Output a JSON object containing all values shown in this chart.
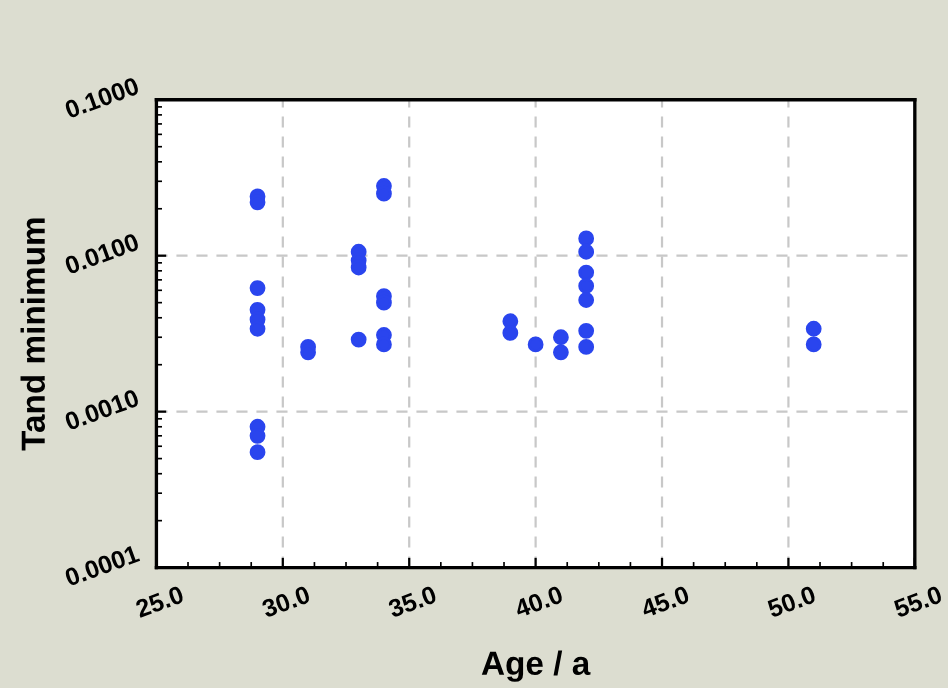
{
  "chart_data": {
    "type": "scatter",
    "xlabel": "Age / a",
    "ylabel": "Tand minimum",
    "log": "y",
    "grid": true,
    "marker": "circle",
    "series": [
      {
        "color": "#2a45ee",
        "x": [
          29,
          29,
          29,
          29,
          29,
          29,
          29,
          29,
          29,
          31,
          31,
          33,
          33,
          33,
          33,
          34,
          34,
          34,
          34,
          34,
          34,
          39,
          39,
          40,
          41,
          41,
          42,
          42,
          42,
          42,
          42,
          42,
          42,
          51,
          51
        ],
        "values": [
          0.024,
          0.022,
          0.0062,
          0.0045,
          0.0039,
          0.0034,
          0.0008,
          0.0007,
          0.00055,
          0.0026,
          0.0024,
          0.0106,
          0.0093,
          0.0084,
          0.0029,
          0.028,
          0.025,
          0.0055,
          0.005,
          0.0031,
          0.0027,
          0.0038,
          0.0032,
          0.0027,
          0.003,
          0.0024,
          0.0129,
          0.0106,
          0.0078,
          0.0064,
          0.0052,
          0.0033,
          0.0026,
          0.0034,
          0.0027
        ]
      }
    ],
    "xlim": [
      25,
      55
    ],
    "xticks": [
      {
        "value": 25,
        "label": "25.0"
      },
      {
        "value": 30,
        "label": "30.0"
      },
      {
        "value": 35,
        "label": "35.0"
      },
      {
        "value": 40,
        "label": "40.0"
      },
      {
        "value": 45,
        "label": "45.0"
      },
      {
        "value": 50,
        "label": "50.0"
      },
      {
        "value": 55,
        "label": "55.0"
      }
    ],
    "ylim": [
      0.0001,
      0.1
    ],
    "yticks": [
      {
        "value": 0.0001,
        "label": "0.0001"
      },
      {
        "value": 0.001,
        "label": "0.0010"
      },
      {
        "value": 0.01,
        "label": "0.0100"
      },
      {
        "value": 0.1,
        "label": "0.1000"
      }
    ]
  }
}
